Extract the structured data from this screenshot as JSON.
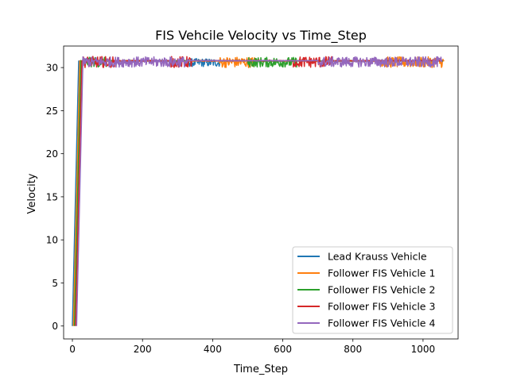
{
  "chart_data": {
    "type": "line",
    "title": "FIS Vehcile Velocity vs Time_Step",
    "xlabel": "Time_Step",
    "ylabel": "Velocity",
    "xlim": [
      -25,
      1100
    ],
    "ylim": [
      -1.5,
      32.5
    ],
    "xticks": [
      0,
      200,
      400,
      600,
      800,
      1000
    ],
    "yticks": [
      0,
      5,
      10,
      15,
      20,
      25,
      30
    ],
    "xtick_labels": [
      "0",
      "200",
      "400",
      "600",
      "800",
      "1000"
    ],
    "ytick_labels": [
      "0",
      "5",
      "10",
      "15",
      "20",
      "25",
      "30"
    ],
    "grid": false,
    "legend_position": "lower-right",
    "series": [
      {
        "name": "Lead Krauss Vehicle",
        "color": "#1f77b4",
        "start": 0,
        "ramp_end": 18,
        "end": 1060,
        "base": 30.75,
        "band_lo": 30.1,
        "band_hi": 31.05,
        "segments": [
          {
            "x": [
              18,
              330
            ],
            "mode": "steady"
          },
          {
            "x": [
              330,
              420
            ],
            "mode": "noisy"
          },
          {
            "x": [
              420,
              1060
            ],
            "mode": "steady"
          }
        ]
      },
      {
        "name": "Follower FIS Vehicle 1",
        "color": "#ff7f0e",
        "start": 3,
        "ramp_end": 21,
        "end": 1060,
        "base": 30.75,
        "band_lo": 30.0,
        "band_hi": 31.25,
        "segments": [
          {
            "x": [
              21,
              420
            ],
            "mode": "steady"
          },
          {
            "x": [
              420,
              520
            ],
            "mode": "noisy"
          },
          {
            "x": [
              520,
              880
            ],
            "mode": "steady"
          },
          {
            "x": [
              880,
              1060
            ],
            "mode": "noisy"
          }
        ]
      },
      {
        "name": "Follower FIS Vehicle 2",
        "color": "#2ca02c",
        "start": 6,
        "ramp_end": 24,
        "end": 1058,
        "base": 30.8,
        "band_lo": 30.05,
        "band_hi": 31.2,
        "segments": [
          {
            "x": [
              24,
              100
            ],
            "mode": "noisy"
          },
          {
            "x": [
              100,
              500
            ],
            "mode": "steady"
          },
          {
            "x": [
              500,
              640
            ],
            "mode": "noisy"
          },
          {
            "x": [
              640,
              1058
            ],
            "mode": "steady"
          }
        ]
      },
      {
        "name": "Follower FIS Vehicle 3",
        "color": "#d62728",
        "start": 9,
        "ramp_end": 27,
        "end": 1056,
        "base": 30.8,
        "band_lo": 30.0,
        "band_hi": 31.3,
        "segments": [
          {
            "x": [
              27,
              120
            ],
            "mode": "noisy"
          },
          {
            "x": [
              120,
              280
            ],
            "mode": "steady"
          },
          {
            "x": [
              280,
              340
            ],
            "mode": "noisy"
          },
          {
            "x": [
              340,
              630
            ],
            "mode": "steady"
          },
          {
            "x": [
              630,
              740
            ],
            "mode": "noisy"
          },
          {
            "x": [
              740,
              1056
            ],
            "mode": "steady"
          }
        ]
      },
      {
        "name": "Follower FIS Vehicle 4",
        "color": "#9467bd",
        "start": 12,
        "ramp_end": 30,
        "end": 1054,
        "base": 30.8,
        "band_lo": 30.05,
        "band_hi": 31.25,
        "segments": [
          {
            "x": [
              30,
              330
            ],
            "mode": "noisy"
          },
          {
            "x": [
              330,
              700
            ],
            "mode": "steady"
          },
          {
            "x": [
              700,
              1054
            ],
            "mode": "noisy"
          }
        ]
      }
    ]
  }
}
